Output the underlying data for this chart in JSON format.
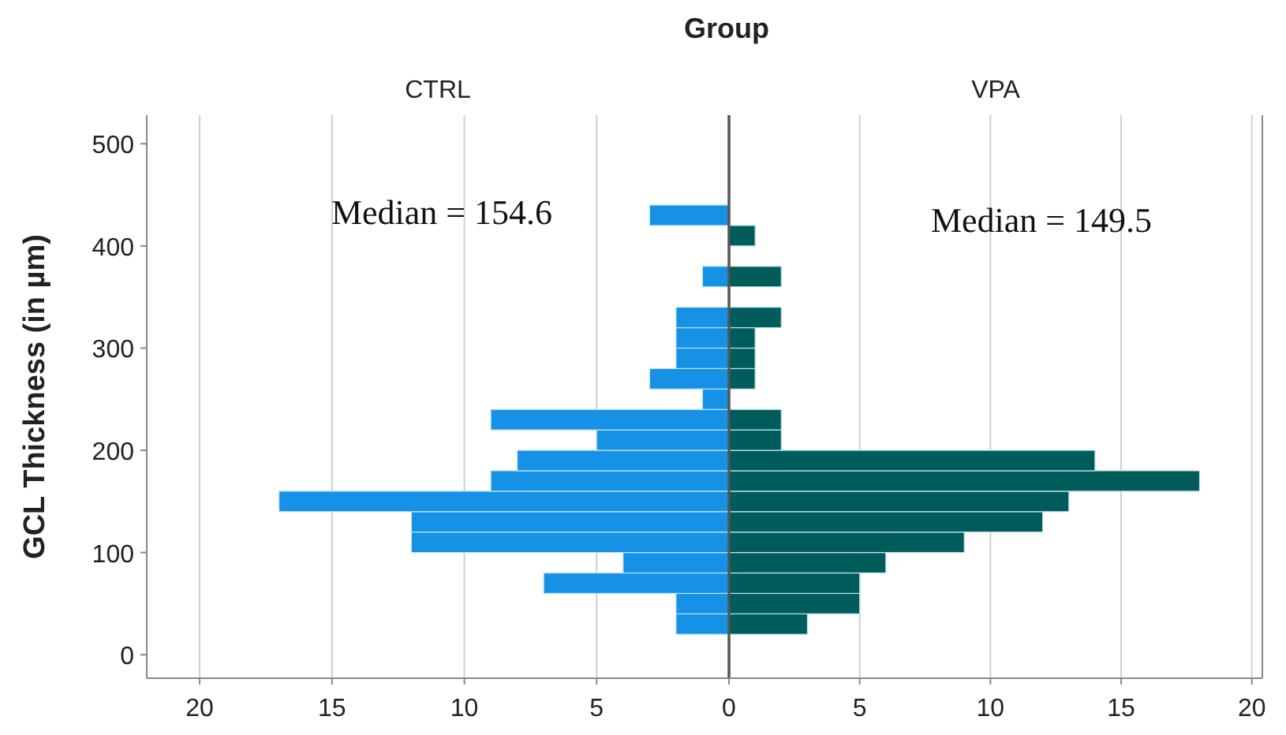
{
  "chart_data": [
    {
      "type": "histogram",
      "orientation": "horizontal",
      "title": "Group",
      "subtitle": "CTRL",
      "ylabel": "GCL Thickness (in µm)",
      "bins": [
        20,
        40,
        60,
        80,
        100,
        120,
        140,
        160,
        180,
        200,
        220,
        240,
        260,
        280,
        300,
        320,
        340,
        360,
        380,
        400,
        420,
        440
      ],
      "series": [
        {
          "color": "#1591e6",
          "values": [
            2,
            2,
            7,
            4,
            12,
            12,
            17,
            9,
            8,
            5,
            9,
            1,
            3,
            2,
            2,
            2,
            0,
            1,
            0,
            0,
            3
          ]
        }
      ],
      "xlim": [
        22,
        0
      ],
      "xticks": [
        20,
        15,
        10,
        5,
        0
      ],
      "ylim": [
        -23,
        528
      ],
      "yticks": [
        0,
        100,
        200,
        300,
        400,
        500
      ],
      "grid": "x",
      "annotations": [
        "Median = 154.6"
      ]
    },
    {
      "type": "histogram",
      "orientation": "horizontal",
      "subtitle": "VPA",
      "bins": [
        20,
        40,
        60,
        80,
        100,
        120,
        140,
        160,
        180,
        200,
        220,
        240,
        260,
        280,
        300,
        320,
        340,
        360,
        380,
        400,
        420,
        440
      ],
      "series": [
        {
          "color": "#005c5a",
          "values": [
            3,
            5,
            5,
            6,
            9,
            12,
            13,
            18,
            14,
            2,
            2,
            0,
            1,
            1,
            1,
            2,
            0,
            2,
            0,
            1,
            0
          ]
        }
      ],
      "xlim": [
        0,
        20.4
      ],
      "xticks": [
        5,
        10,
        15,
        20
      ],
      "ylim": [
        -23,
        528
      ],
      "yticks": [
        0,
        100,
        200,
        300,
        400,
        500
      ],
      "grid": "x",
      "tick_labels": "x",
      "annotations": [
        "Median = 149.5"
      ]
    }
  ]
}
